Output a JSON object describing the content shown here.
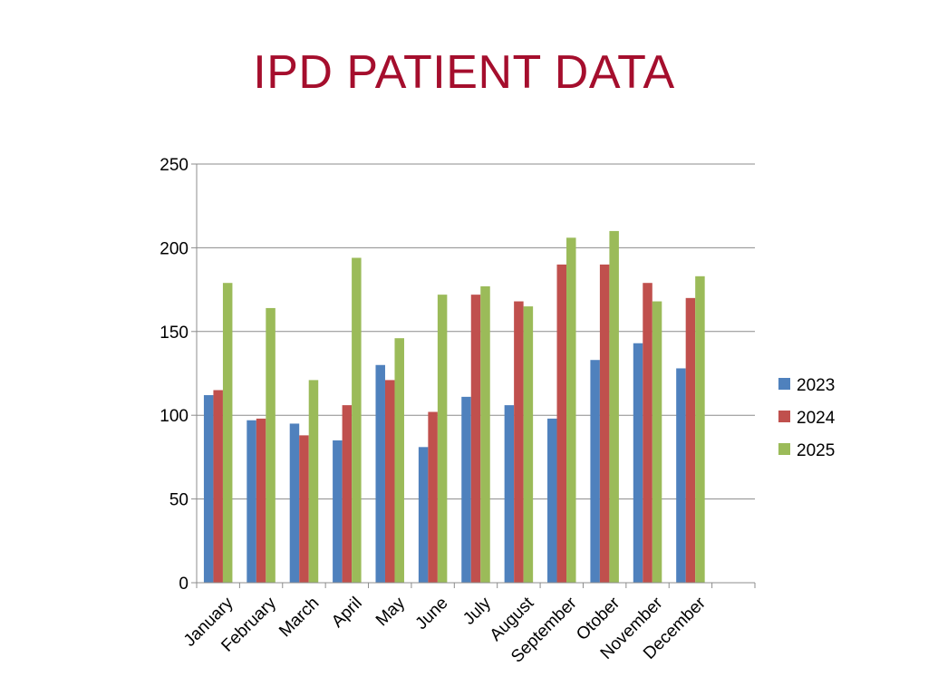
{
  "title": "IPD PATIENT DATA",
  "chart_data": {
    "type": "bar",
    "categories": [
      "January",
      "February",
      "March",
      "April",
      "May",
      "June",
      "July",
      "August",
      "September",
      "Otober",
      "November",
      "December"
    ],
    "series": [
      {
        "name": "2023",
        "color": "#4F81BD",
        "values": [
          112,
          97,
          95,
          85,
          130,
          81,
          111,
          106,
          98,
          133,
          143,
          128
        ]
      },
      {
        "name": "2024",
        "color": "#C0504D",
        "values": [
          115,
          98,
          88,
          106,
          121,
          102,
          172,
          168,
          190,
          190,
          179,
          170
        ]
      },
      {
        "name": "2025",
        "color": "#9BBB59",
        "values": [
          179,
          164,
          121,
          194,
          146,
          172,
          177,
          165,
          206,
          210,
          168,
          183
        ]
      }
    ],
    "ylim": [
      0,
      250
    ],
    "yticks": [
      0,
      50,
      100,
      150,
      200,
      250
    ],
    "grid": true,
    "legend": "right",
    "xlabel": "",
    "ylabel": ""
  }
}
